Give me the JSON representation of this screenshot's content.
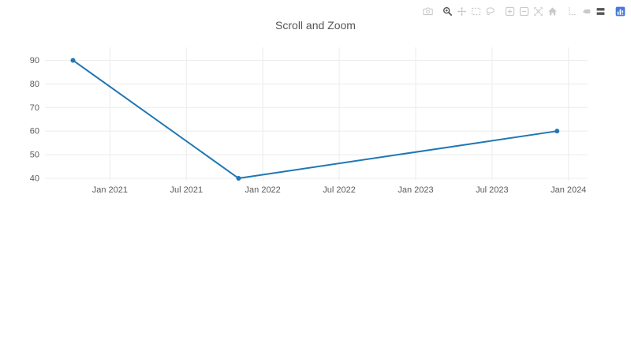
{
  "chart_data": {
    "type": "line",
    "title": "Scroll and Zoom",
    "x": [
      "2020-10-04",
      "2021-11-04",
      "2023-12-04"
    ],
    "y": [
      90,
      40,
      60
    ],
    "x_tick_labels": [
      "Jan 2021",
      "Jul 2021",
      "Jan 2022",
      "Jul 2022",
      "Jan 2023",
      "Jul 2023",
      "Jan 2024"
    ],
    "x_tick_months": [
      12,
      18,
      24,
      30,
      36,
      42,
      48
    ],
    "y_ticks": [
      40,
      50,
      60,
      70,
      80,
      90
    ],
    "xlim_months": [
      6.9,
      49.5
    ],
    "ylim": [
      39,
      95.5
    ],
    "grid": true,
    "legend": "none",
    "line_color": "#1f77b4",
    "marker_color": "#1f77b4",
    "grid_color": "#ececec",
    "tick_label_color": "#5b5b5b",
    "title_color": "#555555",
    "background": "#ffffff"
  },
  "modebar": {
    "icon_color": "#c9c9c9",
    "active_color": "#545454",
    "logo_color": "#447adb",
    "icons": [
      {
        "name": "camera",
        "active": false,
        "group_start": false
      },
      {
        "name": "zoom",
        "active": true,
        "group_start": true
      },
      {
        "name": "pan",
        "active": false,
        "group_start": false
      },
      {
        "name": "box-select",
        "active": false,
        "group_start": false
      },
      {
        "name": "lasso-select",
        "active": false,
        "group_start": false
      },
      {
        "name": "zoom-in",
        "active": false,
        "group_start": true
      },
      {
        "name": "zoom-out",
        "active": false,
        "group_start": false
      },
      {
        "name": "autoscale",
        "active": false,
        "group_start": false
      },
      {
        "name": "reset-axes",
        "active": false,
        "group_start": false
      },
      {
        "name": "toggle-spikelines",
        "active": false,
        "group_start": true
      },
      {
        "name": "hover-closest",
        "active": false,
        "group_start": false
      },
      {
        "name": "hover-compare",
        "active": true,
        "group_start": false
      },
      {
        "name": "plotly-logo",
        "active": false,
        "group_start": true
      }
    ]
  }
}
